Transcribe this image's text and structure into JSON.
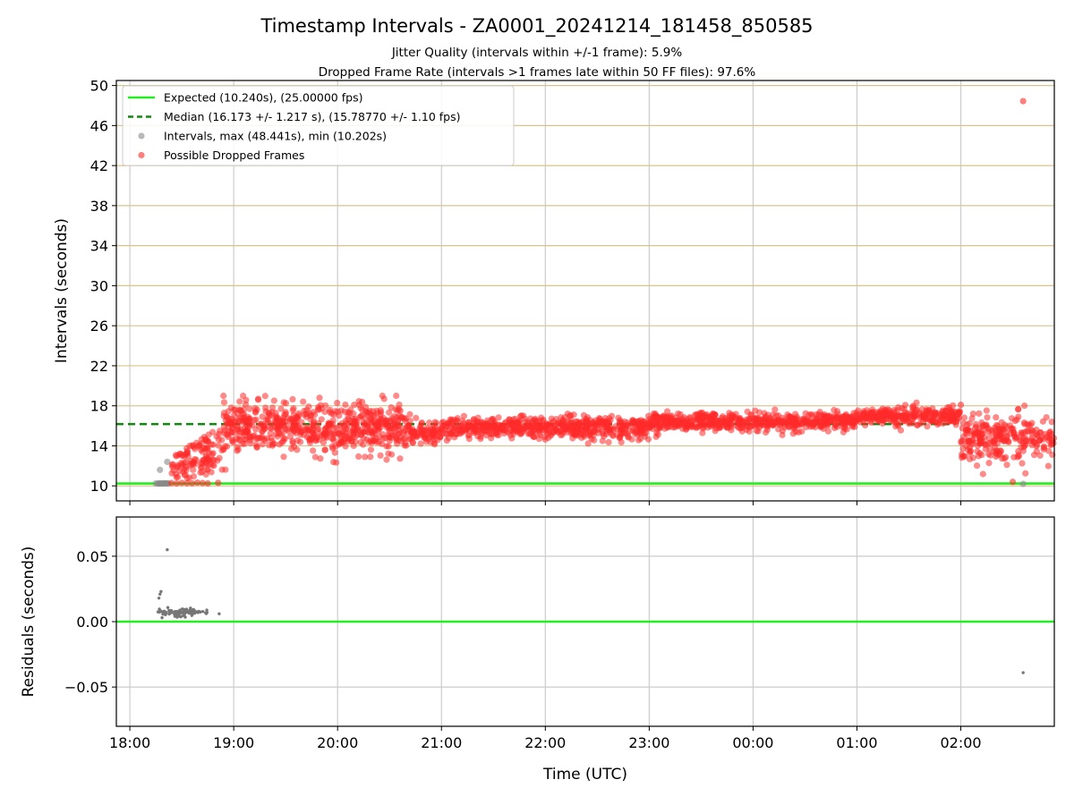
{
  "chart_data": [
    {
      "type": "scatter",
      "title": "Timestamp Intervals - ZA0001_20241214_181458_850585",
      "subtitle_lines": [
        "Jitter Quality (intervals within +/-1 frame): 5.9%",
        "Dropped Frame Rate (intervals >1 frames late within 50 FF files): 97.6%"
      ],
      "xlabel": "",
      "ylabel": "Intervals (seconds)",
      "x_unit": "hours since 18:00 UTC",
      "xlim": [
        -0.13,
        8.9
      ],
      "ylim": [
        8.5,
        50.5
      ],
      "x_ticks": [
        0,
        1,
        2,
        3,
        4,
        5,
        6,
        7,
        8
      ],
      "x_tick_labels": [
        "18:00",
        "19:00",
        "20:00",
        "21:00",
        "22:00",
        "23:00",
        "00:00",
        "01:00",
        "02:00"
      ],
      "y_ticks": [
        10,
        14,
        18,
        22,
        26,
        30,
        34,
        38,
        42,
        46,
        50
      ],
      "y_tick_labels": [
        "10",
        "14",
        "18",
        "22",
        "26",
        "30",
        "34",
        "38",
        "42",
        "46",
        "50"
      ],
      "grid": true,
      "legend_position": "top-left",
      "legend": [
        {
          "label": "Expected (10.240s), (25.00000 fps)",
          "kind": "line-solid",
          "color": "#22ee22"
        },
        {
          "label": "Median (16.173 +/- 1.217 s), (15.78770 +/- 1.10 fps)",
          "kind": "line-dashed",
          "color": "#118811"
        },
        {
          "label": "Intervals, max (48.441s), min (10.202s)",
          "kind": "dot",
          "color": "#888888"
        },
        {
          "label": "Possible Dropped Frames",
          "kind": "dot",
          "color": "#ff2a2a"
        }
      ],
      "expected_interval": 10.24,
      "median_interval": 16.173,
      "median_line_x_end": 7.95,
      "series": [
        {
          "name": "Intervals, max (48.441s), min (10.202s)",
          "color": "#888888",
          "points": [
            [
              0.25,
              10.25
            ],
            [
              0.27,
              10.22
            ],
            [
              0.28,
              10.24
            ],
            [
              0.29,
              10.26
            ],
            [
              0.3,
              10.23
            ],
            [
              0.31,
              10.25
            ],
            [
              0.32,
              10.22
            ],
            [
              0.33,
              10.27
            ],
            [
              0.34,
              10.24
            ],
            [
              0.35,
              10.26
            ],
            [
              0.36,
              10.23
            ],
            [
              0.37,
              10.25
            ],
            [
              0.29,
              11.6
            ],
            [
              0.36,
              12.4
            ],
            [
              8.6,
              10.2
            ]
          ]
        },
        {
          "name": "Possible Dropped Frames",
          "color": "#ff2a2a",
          "points": [
            [
              8.6,
              48.441
            ],
            [
              8.5,
              10.4
            ],
            [
              8.0,
              18.1
            ],
            [
              0.4,
              10.28
            ],
            [
              0.45,
              10.25
            ],
            [
              0.5,
              10.3
            ],
            [
              0.55,
              10.27
            ],
            [
              0.6,
              10.26
            ],
            [
              0.65,
              10.32
            ],
            [
              0.7,
              10.28
            ],
            [
              0.75,
              10.25
            ],
            [
              0.85,
              10.3
            ]
          ],
          "clusters": [
            {
              "x": [
                0.4,
                0.9
              ],
              "y_start": [
                10.4,
                13.0
              ],
              "y_end": [
                11.5,
                16.0
              ],
              "count": 120
            },
            {
              "x": [
                0.9,
                2.7
              ],
              "center": 15.8,
              "spread": 1.2,
              "count": 620
            },
            {
              "x": [
                2.7,
                3.0
              ],
              "center": 15.2,
              "spread": 0.5,
              "count": 80
            },
            {
              "x": [
                3.0,
                5.0
              ],
              "center": 15.8,
              "spread": 0.55,
              "count": 560
            },
            {
              "x": [
                5.0,
                7.0
              ],
              "center": 16.4,
              "spread": 0.45,
              "count": 560
            },
            {
              "x": [
                7.0,
                8.0
              ],
              "center": 16.9,
              "spread": 0.45,
              "count": 280
            },
            {
              "x": [
                8.0,
                8.9
              ],
              "center": 14.9,
              "spread": 1.1,
              "count": 260
            }
          ]
        }
      ]
    },
    {
      "type": "scatter",
      "title": "",
      "xlabel": "Time (UTC)",
      "ylabel": "Residuals (seconds)",
      "xlim": [
        -0.13,
        8.9
      ],
      "ylim": [
        -0.08,
        0.08
      ],
      "y_ticks": [
        0.05,
        0.0,
        -0.05
      ],
      "y_tick_labels": [
        "0.05",
        "0.00",
        "−0.05"
      ],
      "x_tick_labels": [
        "18:00",
        "19:00",
        "20:00",
        "21:00",
        "22:00",
        "23:00",
        "00:00",
        "01:00",
        "02:00"
      ],
      "grid": true,
      "zero_line_color": "#22ee22",
      "series": [
        {
          "name": "",
          "color": "#777777",
          "points": [
            [
              0.28,
              0.018
            ],
            [
              0.29,
              0.021
            ],
            [
              0.3,
              0.023
            ],
            [
              0.31,
              0.003
            ],
            [
              0.36,
              0.055
            ],
            [
              0.86,
              0.006
            ],
            [
              8.6,
              -0.039
            ]
          ],
          "clusters": [
            {
              "x": [
                0.27,
                0.75
              ],
              "center": 0.0075,
              "spread": 0.0012,
              "count": 90
            },
            {
              "x": [
                0.42,
                0.55
              ],
              "center": 0.004,
              "spread": 0.0008,
              "count": 12
            }
          ]
        }
      ]
    }
  ]
}
